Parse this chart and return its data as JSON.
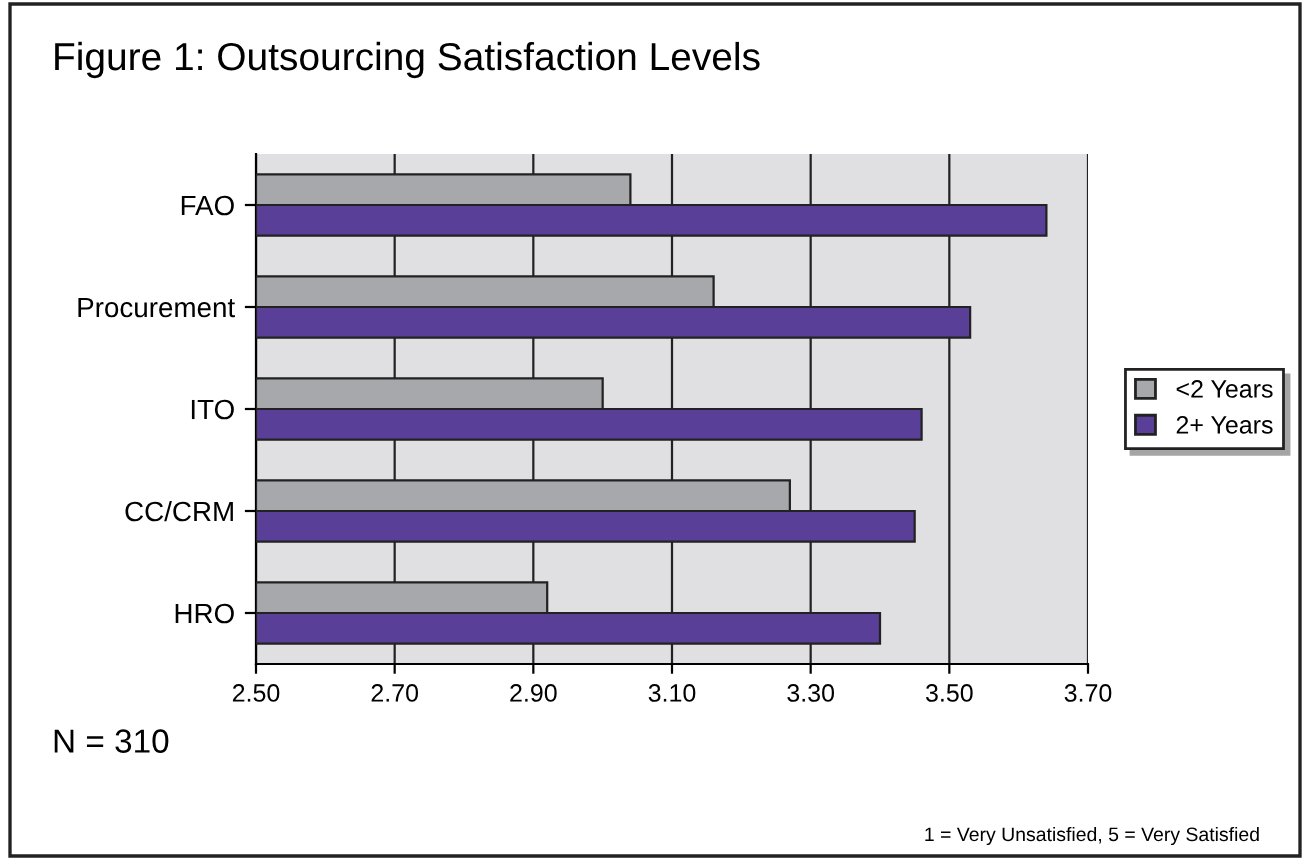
{
  "chart_data": {
    "type": "bar",
    "orientation": "horizontal",
    "title": "Figure 1: Outsourcing Satisfaction Levels",
    "categories": [
      "FAO",
      "Procurement",
      "ITO",
      "CC/CRM",
      "HRO"
    ],
    "series": [
      {
        "name": "<2 Years",
        "color": "#a6a8ab",
        "values": [
          3.04,
          3.16,
          3.0,
          3.27,
          2.92
        ]
      },
      {
        "name": "2+ Years",
        "color": "#5a3f98",
        "values": [
          3.64,
          3.53,
          3.46,
          3.45,
          3.4
        ]
      }
    ],
    "xlim": [
      2.5,
      3.7
    ],
    "xticks": [
      {
        "value": 2.5,
        "label": "2.50"
      },
      {
        "value": 2.7,
        "label": "2.70"
      },
      {
        "value": 2.9,
        "label": "2.90"
      },
      {
        "value": 3.1,
        "label": "3.10"
      },
      {
        "value": 3.3,
        "label": "3.30"
      },
      {
        "value": 3.5,
        "label": "3.50"
      },
      {
        "value": 3.7,
        "label": "3.70"
      }
    ],
    "grid": "x",
    "legend": "right",
    "annotations": [
      "N = 310",
      "1 = Very Unsatisfied, 5 = Very Satisfied"
    ]
  }
}
